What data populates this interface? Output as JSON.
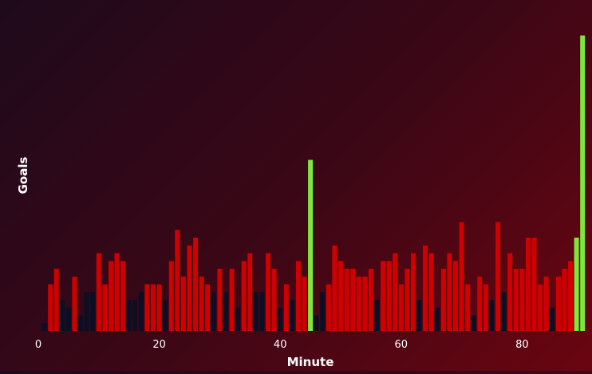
{
  "chart_data": {
    "type": "bar",
    "title": "",
    "xlabel": "Minute",
    "ylabel": "Goals",
    "x_ticks": [
      "0",
      "20",
      "40",
      "60",
      "80"
    ],
    "xlim": [
      0,
      90
    ],
    "ylim": [
      0,
      19
    ],
    "grid": false,
    "colors": {
      "low": "#0c0e24",
      "normal": "#d10000",
      "high": "#7de83a"
    },
    "threshold_low": 3,
    "threshold_high": 8,
    "x": [
      1,
      2,
      3,
      4,
      5,
      6,
      7,
      8,
      9,
      10,
      11,
      12,
      13,
      14,
      15,
      16,
      17,
      18,
      19,
      20,
      21,
      22,
      23,
      24,
      25,
      26,
      27,
      28,
      29,
      30,
      31,
      32,
      33,
      34,
      35,
      36,
      37,
      38,
      39,
      40,
      41,
      42,
      43,
      44,
      45,
      46,
      47,
      48,
      49,
      50,
      51,
      52,
      53,
      54,
      55,
      56,
      57,
      58,
      59,
      60,
      61,
      62,
      63,
      64,
      65,
      66,
      67,
      68,
      69,
      70,
      71,
      72,
      73,
      74,
      75,
      76,
      77,
      78,
      79,
      80,
      81,
      82,
      83,
      84,
      85,
      86,
      87,
      88,
      89,
      90
    ],
    "values": [
      0.5,
      3,
      4,
      2,
      1.5,
      3.5,
      1,
      2.5,
      2.5,
      5,
      3,
      4.5,
      5,
      4.5,
      2,
      2,
      2.5,
      3,
      3,
      3,
      2,
      4.5,
      6.5,
      3.5,
      5.5,
      6,
      3.5,
      3,
      2.5,
      4,
      2.5,
      4,
      1.5,
      4.5,
      5,
      2.5,
      2.5,
      5,
      4,
      1.5,
      3,
      2,
      4.5,
      3.5,
      11,
      1,
      2.5,
      3,
      5.5,
      4.5,
      4,
      4,
      3.5,
      3.5,
      4,
      2,
      4.5,
      4.5,
      5,
      3,
      4,
      5,
      2,
      5.5,
      5,
      1.5,
      4,
      5,
      4.5,
      7,
      3,
      1,
      3.5,
      3,
      2,
      7,
      2.5,
      5,
      4,
      4,
      6,
      6,
      3,
      3.5,
      1.5,
      3.5,
      4,
      4.5,
      6,
      19
    ]
  }
}
